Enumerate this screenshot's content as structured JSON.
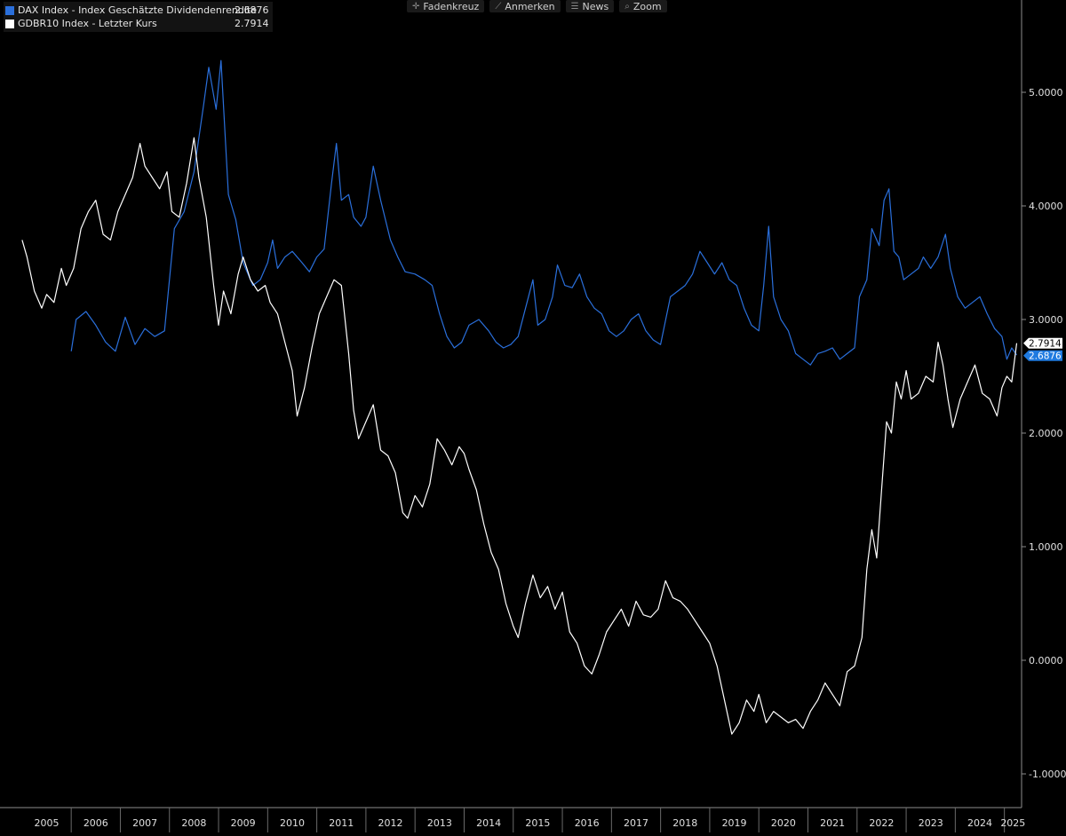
{
  "legend": [
    {
      "name": "DAX Index - Index Geschätzte Dividendenrendite",
      "value": "2.6876",
      "color": "#2a6fdb"
    },
    {
      "name": "GDBR10 Index - Letzter Kurs",
      "value": "2.7914",
      "color": "#ffffff"
    }
  ],
  "toolbar": [
    {
      "label": "Fadenkreuz",
      "icon": "crosshair-icon",
      "glyph": "✛"
    },
    {
      "label": "Anmerken",
      "icon": "annotate-icon",
      "glyph": "⟋"
    },
    {
      "label": "News",
      "icon": "news-icon",
      "glyph": "☰"
    },
    {
      "label": "Zoom",
      "icon": "zoom-icon",
      "glyph": "⌕"
    }
  ],
  "chart_data": {
    "type": "line",
    "grid": false,
    "legend_position": "top-left",
    "y_ticks": [
      "5.0000",
      "4.0000",
      "3.0000",
      "2.0000",
      "1.0000",
      "0.0000",
      "-1.0000"
    ],
    "x_ticks": [
      "2005",
      "2006",
      "2007",
      "2008",
      "2009",
      "2010",
      "2011",
      "2012",
      "2013",
      "2014",
      "2015",
      "2016",
      "2017",
      "2018",
      "2019",
      "2020",
      "2021",
      "2022",
      "2023",
      "2024",
      "2025"
    ],
    "last_value_labels": [
      {
        "series": "GDBR10 Index - Letzter Kurs",
        "text": "2.7914"
      },
      {
        "series": "DAX Index - Index Geschätzte Dividendenrendite",
        "text": "2.6876"
      }
    ],
    "series": [
      {
        "name": "DAX Index - Index Geschätzte Dividendenrendite",
        "color": "#2a6fdb",
        "points": [
          [
            2006.0,
            2.72
          ],
          [
            2006.1,
            3.0
          ],
          [
            2006.3,
            3.07
          ],
          [
            2006.5,
            2.95
          ],
          [
            2006.7,
            2.8
          ],
          [
            2006.9,
            2.72
          ],
          [
            2007.1,
            3.02
          ],
          [
            2007.3,
            2.78
          ],
          [
            2007.5,
            2.92
          ],
          [
            2007.7,
            2.85
          ],
          [
            2007.9,
            2.9
          ],
          [
            2008.1,
            3.8
          ],
          [
            2008.3,
            3.95
          ],
          [
            2008.5,
            4.3
          ],
          [
            2008.7,
            4.9
          ],
          [
            2008.8,
            5.22
          ],
          [
            2008.95,
            4.85
          ],
          [
            2009.05,
            5.28
          ],
          [
            2009.2,
            4.1
          ],
          [
            2009.35,
            3.88
          ],
          [
            2009.5,
            3.5
          ],
          [
            2009.7,
            3.3
          ],
          [
            2009.85,
            3.35
          ],
          [
            2010.0,
            3.5
          ],
          [
            2010.1,
            3.7
          ],
          [
            2010.2,
            3.45
          ],
          [
            2010.35,
            3.55
          ],
          [
            2010.5,
            3.6
          ],
          [
            2010.7,
            3.5
          ],
          [
            2010.85,
            3.42
          ],
          [
            2011.0,
            3.55
          ],
          [
            2011.15,
            3.62
          ],
          [
            2011.3,
            4.2
          ],
          [
            2011.4,
            4.55
          ],
          [
            2011.5,
            4.05
          ],
          [
            2011.65,
            4.1
          ],
          [
            2011.75,
            3.9
          ],
          [
            2011.9,
            3.82
          ],
          [
            2012.0,
            3.9
          ],
          [
            2012.15,
            4.35
          ],
          [
            2012.3,
            4.05
          ],
          [
            2012.5,
            3.7
          ],
          [
            2012.65,
            3.55
          ],
          [
            2012.8,
            3.42
          ],
          [
            2013.0,
            3.4
          ],
          [
            2013.2,
            3.35
          ],
          [
            2013.35,
            3.3
          ],
          [
            2013.5,
            3.05
          ],
          [
            2013.65,
            2.85
          ],
          [
            2013.8,
            2.75
          ],
          [
            2013.95,
            2.8
          ],
          [
            2014.1,
            2.95
          ],
          [
            2014.3,
            3.0
          ],
          [
            2014.5,
            2.9
          ],
          [
            2014.65,
            2.8
          ],
          [
            2014.8,
            2.75
          ],
          [
            2014.95,
            2.78
          ],
          [
            2015.1,
            2.85
          ],
          [
            2015.25,
            3.1
          ],
          [
            2015.4,
            3.35
          ],
          [
            2015.5,
            2.95
          ],
          [
            2015.65,
            3.0
          ],
          [
            2015.8,
            3.2
          ],
          [
            2015.9,
            3.48
          ],
          [
            2016.05,
            3.3
          ],
          [
            2016.2,
            3.28
          ],
          [
            2016.35,
            3.4
          ],
          [
            2016.5,
            3.2
          ],
          [
            2016.65,
            3.1
          ],
          [
            2016.8,
            3.05
          ],
          [
            2016.95,
            2.9
          ],
          [
            2017.1,
            2.85
          ],
          [
            2017.25,
            2.9
          ],
          [
            2017.4,
            3.0
          ],
          [
            2017.55,
            3.05
          ],
          [
            2017.7,
            2.9
          ],
          [
            2017.85,
            2.82
          ],
          [
            2018.0,
            2.78
          ],
          [
            2018.2,
            3.2
          ],
          [
            2018.35,
            3.25
          ],
          [
            2018.5,
            3.3
          ],
          [
            2018.65,
            3.4
          ],
          [
            2018.8,
            3.6
          ],
          [
            2018.95,
            3.5
          ],
          [
            2019.1,
            3.4
          ],
          [
            2019.25,
            3.5
          ],
          [
            2019.4,
            3.35
          ],
          [
            2019.55,
            3.3
          ],
          [
            2019.7,
            3.1
          ],
          [
            2019.85,
            2.95
          ],
          [
            2020.0,
            2.9
          ],
          [
            2020.1,
            3.3
          ],
          [
            2020.2,
            3.82
          ],
          [
            2020.3,
            3.2
          ],
          [
            2020.45,
            3.0
          ],
          [
            2020.6,
            2.9
          ],
          [
            2020.75,
            2.7
          ],
          [
            2020.9,
            2.65
          ],
          [
            2021.05,
            2.6
          ],
          [
            2021.2,
            2.7
          ],
          [
            2021.35,
            2.72
          ],
          [
            2021.5,
            2.75
          ],
          [
            2021.65,
            2.65
          ],
          [
            2021.8,
            2.7
          ],
          [
            2021.95,
            2.75
          ],
          [
            2022.05,
            3.2
          ],
          [
            2022.2,
            3.35
          ],
          [
            2022.3,
            3.8
          ],
          [
            2022.45,
            3.65
          ],
          [
            2022.55,
            4.05
          ],
          [
            2022.65,
            4.15
          ],
          [
            2022.75,
            3.6
          ],
          [
            2022.85,
            3.55
          ],
          [
            2022.95,
            3.35
          ],
          [
            2023.1,
            3.4
          ],
          [
            2023.25,
            3.45
          ],
          [
            2023.35,
            3.55
          ],
          [
            2023.5,
            3.45
          ],
          [
            2023.65,
            3.55
          ],
          [
            2023.8,
            3.75
          ],
          [
            2023.9,
            3.45
          ],
          [
            2024.05,
            3.2
          ],
          [
            2024.2,
            3.1
          ],
          [
            2024.35,
            3.15
          ],
          [
            2024.5,
            3.2
          ],
          [
            2024.65,
            3.05
          ],
          [
            2024.8,
            2.92
          ],
          [
            2024.95,
            2.85
          ],
          [
            2025.05,
            2.65
          ],
          [
            2025.15,
            2.75
          ],
          [
            2025.25,
            2.6876
          ]
        ]
      },
      {
        "name": "GDBR10 Index - Letzter Kurs",
        "color": "#ffffff",
        "points": [
          [
            2005.0,
            3.7
          ],
          [
            2005.1,
            3.55
          ],
          [
            2005.25,
            3.25
          ],
          [
            2005.4,
            3.1
          ],
          [
            2005.5,
            3.22
          ],
          [
            2005.65,
            3.15
          ],
          [
            2005.8,
            3.45
          ],
          [
            2005.9,
            3.3
          ],
          [
            2006.05,
            3.45
          ],
          [
            2006.2,
            3.8
          ],
          [
            2006.35,
            3.95
          ],
          [
            2006.5,
            4.05
          ],
          [
            2006.65,
            3.75
          ],
          [
            2006.8,
            3.7
          ],
          [
            2006.95,
            3.95
          ],
          [
            2007.1,
            4.1
          ],
          [
            2007.25,
            4.25
          ],
          [
            2007.4,
            4.55
          ],
          [
            2007.5,
            4.35
          ],
          [
            2007.65,
            4.25
          ],
          [
            2007.8,
            4.15
          ],
          [
            2007.95,
            4.3
          ],
          [
            2008.05,
            3.95
          ],
          [
            2008.2,
            3.9
          ],
          [
            2008.35,
            4.2
          ],
          [
            2008.5,
            4.6
          ],
          [
            2008.6,
            4.25
          ],
          [
            2008.75,
            3.9
          ],
          [
            2008.9,
            3.3
          ],
          [
            2009.0,
            2.95
          ],
          [
            2009.1,
            3.25
          ],
          [
            2009.25,
            3.05
          ],
          [
            2009.4,
            3.4
          ],
          [
            2009.5,
            3.55
          ],
          [
            2009.65,
            3.35
          ],
          [
            2009.8,
            3.25
          ],
          [
            2009.95,
            3.3
          ],
          [
            2010.05,
            3.15
          ],
          [
            2010.2,
            3.05
          ],
          [
            2010.35,
            2.8
          ],
          [
            2010.5,
            2.55
          ],
          [
            2010.6,
            2.15
          ],
          [
            2010.75,
            2.4
          ],
          [
            2010.9,
            2.75
          ],
          [
            2011.05,
            3.05
          ],
          [
            2011.2,
            3.2
          ],
          [
            2011.35,
            3.35
          ],
          [
            2011.5,
            3.3
          ],
          [
            2011.65,
            2.7
          ],
          [
            2011.75,
            2.2
          ],
          [
            2011.85,
            1.95
          ],
          [
            2012.0,
            2.1
          ],
          [
            2012.15,
            2.25
          ],
          [
            2012.3,
            1.85
          ],
          [
            2012.45,
            1.8
          ],
          [
            2012.6,
            1.65
          ],
          [
            2012.75,
            1.3
          ],
          [
            2012.85,
            1.25
          ],
          [
            2013.0,
            1.45
          ],
          [
            2013.15,
            1.35
          ],
          [
            2013.3,
            1.55
          ],
          [
            2013.45,
            1.95
          ],
          [
            2013.6,
            1.85
          ],
          [
            2013.75,
            1.72
          ],
          [
            2013.9,
            1.88
          ],
          [
            2014.0,
            1.82
          ],
          [
            2014.1,
            1.68
          ],
          [
            2014.25,
            1.5
          ],
          [
            2014.4,
            1.2
          ],
          [
            2014.55,
            0.95
          ],
          [
            2014.7,
            0.8
          ],
          [
            2014.85,
            0.5
          ],
          [
            2015.0,
            0.3
          ],
          [
            2015.1,
            0.2
          ],
          [
            2015.25,
            0.5
          ],
          [
            2015.4,
            0.75
          ],
          [
            2015.55,
            0.55
          ],
          [
            2015.7,
            0.65
          ],
          [
            2015.85,
            0.45
          ],
          [
            2016.0,
            0.6
          ],
          [
            2016.15,
            0.25
          ],
          [
            2016.3,
            0.15
          ],
          [
            2016.45,
            -0.05
          ],
          [
            2016.6,
            -0.12
          ],
          [
            2016.75,
            0.05
          ],
          [
            2016.9,
            0.25
          ],
          [
            2017.05,
            0.35
          ],
          [
            2017.2,
            0.45
          ],
          [
            2017.35,
            0.3
          ],
          [
            2017.5,
            0.52
          ],
          [
            2017.65,
            0.4
          ],
          [
            2017.8,
            0.38
          ],
          [
            2017.95,
            0.45
          ],
          [
            2018.1,
            0.7
          ],
          [
            2018.25,
            0.55
          ],
          [
            2018.4,
            0.52
          ],
          [
            2018.55,
            0.45
          ],
          [
            2018.7,
            0.35
          ],
          [
            2018.85,
            0.25
          ],
          [
            2019.0,
            0.15
          ],
          [
            2019.15,
            -0.05
          ],
          [
            2019.3,
            -0.35
          ],
          [
            2019.45,
            -0.65
          ],
          [
            2019.6,
            -0.55
          ],
          [
            2019.75,
            -0.35
          ],
          [
            2019.9,
            -0.45
          ],
          [
            2020.0,
            -0.3
          ],
          [
            2020.15,
            -0.55
          ],
          [
            2020.3,
            -0.45
          ],
          [
            2020.45,
            -0.5
          ],
          [
            2020.6,
            -0.55
          ],
          [
            2020.75,
            -0.52
          ],
          [
            2020.9,
            -0.6
          ],
          [
            2021.05,
            -0.45
          ],
          [
            2021.2,
            -0.35
          ],
          [
            2021.35,
            -0.2
          ],
          [
            2021.5,
            -0.3
          ],
          [
            2021.65,
            -0.4
          ],
          [
            2021.8,
            -0.1
          ],
          [
            2021.95,
            -0.05
          ],
          [
            2022.1,
            0.2
          ],
          [
            2022.2,
            0.8
          ],
          [
            2022.3,
            1.15
          ],
          [
            2022.4,
            0.9
          ],
          [
            2022.5,
            1.5
          ],
          [
            2022.6,
            2.1
          ],
          [
            2022.7,
            2.0
          ],
          [
            2022.8,
            2.45
          ],
          [
            2022.9,
            2.3
          ],
          [
            2023.0,
            2.55
          ],
          [
            2023.1,
            2.3
          ],
          [
            2023.25,
            2.35
          ],
          [
            2023.4,
            2.5
          ],
          [
            2023.55,
            2.45
          ],
          [
            2023.65,
            2.8
          ],
          [
            2023.75,
            2.6
          ],
          [
            2023.85,
            2.3
          ],
          [
            2023.95,
            2.05
          ],
          [
            2024.1,
            2.3
          ],
          [
            2024.25,
            2.45
          ],
          [
            2024.4,
            2.6
          ],
          [
            2024.55,
            2.35
          ],
          [
            2024.7,
            2.3
          ],
          [
            2024.85,
            2.15
          ],
          [
            2024.95,
            2.4
          ],
          [
            2025.05,
            2.5
          ],
          [
            2025.15,
            2.45
          ],
          [
            2025.25,
            2.7914
          ]
        ]
      }
    ]
  }
}
